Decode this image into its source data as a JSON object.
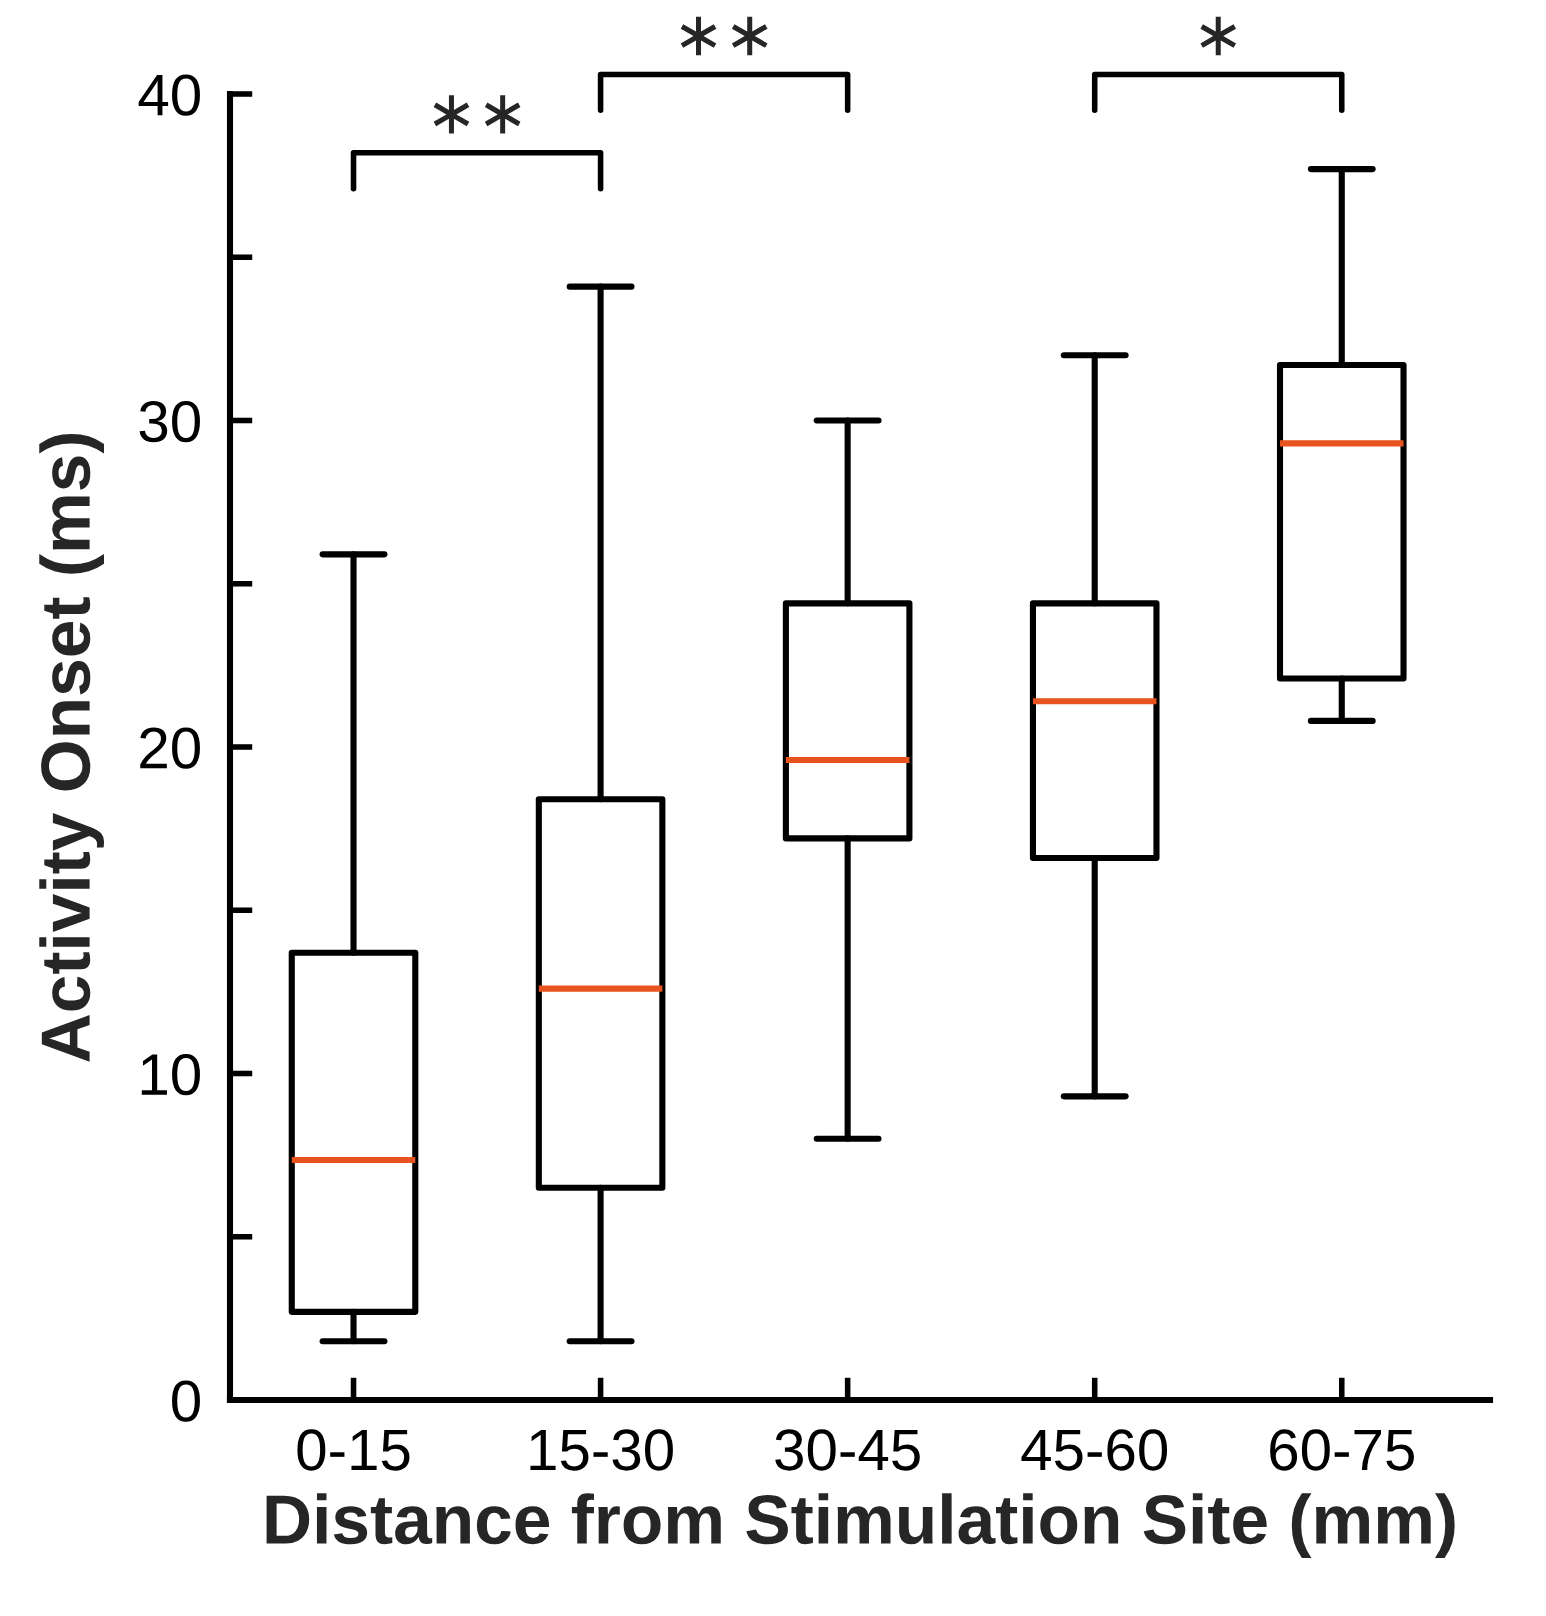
{
  "chart_data": {
    "type": "box",
    "xlabel": "Distance from Stimulation Site (mm)",
    "ylabel": "Activity Onset (ms)",
    "categories": [
      "0-15",
      "15-30",
      "30-45",
      "45-60",
      "60-75"
    ],
    "boxes": [
      {
        "low": 1.8,
        "q1": 2.7,
        "median": 7.35,
        "q3": 13.7,
        "high": 25.9
      },
      {
        "low": 1.8,
        "q1": 6.5,
        "median": 12.6,
        "q3": 18.4,
        "high": 34.1
      },
      {
        "low": 8.0,
        "q1": 17.2,
        "median": 19.6,
        "q3": 24.4,
        "high": 30.0
      },
      {
        "low": 9.3,
        "q1": 16.6,
        "median": 21.4,
        "q3": 24.4,
        "high": 32.0
      },
      {
        "low": 20.8,
        "q1": 22.1,
        "median": 29.3,
        "q3": 31.7,
        "high": 37.7
      }
    ],
    "color": "#000000",
    "ylim": [
      0,
      40
    ],
    "yticks": [
      0,
      {
        "value": 5,
        "label": null
      },
      10,
      {
        "value": 15,
        "label": null
      },
      20,
      {
        "value": 25,
        "label": null
      },
      30,
      {
        "value": 35,
        "label": null
      },
      40
    ],
    "grid": false,
    "annotations": [
      "∗∗",
      "∗∗",
      "∗"
    ]
  }
}
